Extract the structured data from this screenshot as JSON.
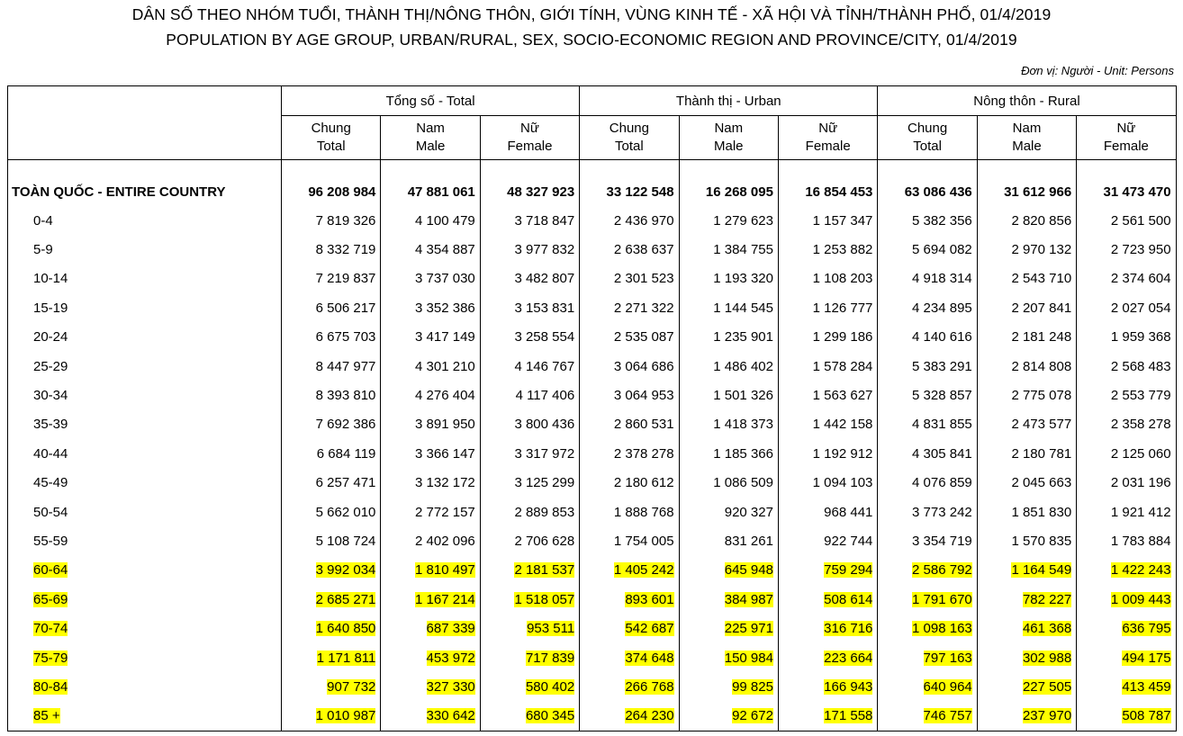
{
  "title_vi": "DÂN SỐ THEO NHÓM TUỔI, THÀNH THỊ/NÔNG THÔN, GIỚI TÍNH, VÙNG KINH TẾ - XÃ HỘI VÀ TỈNH/THÀNH PHỐ, 01/4/2019",
  "title_en": "POPULATION BY AGE GROUP, URBAN/RURAL, SEX, SOCIO-ECONOMIC REGION AND PROVINCE/CITY, 01/4/2019",
  "unit": "Đơn vị: Người - Unit: Persons",
  "highlight_color": "#ffff00",
  "groups": [
    {
      "label": "Tổng số - Total"
    },
    {
      "label": "Thành thị - Urban"
    },
    {
      "label": "Nông thôn - Rural"
    }
  ],
  "subheaders": [
    {
      "vi": "Chung",
      "en": "Total"
    },
    {
      "vi": "Nam",
      "en": "Male"
    },
    {
      "vi": "Nữ",
      "en": "Female"
    },
    {
      "vi": "Chung",
      "en": "Total"
    },
    {
      "vi": "Nam",
      "en": "Male"
    },
    {
      "vi": "Nữ",
      "en": "Female"
    },
    {
      "vi": "Chung",
      "en": "Total"
    },
    {
      "vi": "Nam",
      "en": "Male"
    },
    {
      "vi": "Nữ",
      "en": "Female"
    }
  ],
  "total_row": {
    "label": "TOÀN QUỐC - ENTIRE COUNTRY",
    "values": [
      "96 208 984",
      "47 881 061",
      "48 327 923",
      "33 122 548",
      "16 268 095",
      "16 854 453",
      "63 086 436",
      "31 612 966",
      "31 473 470"
    ]
  },
  "rows": [
    {
      "label": "0-4",
      "highlighted": false,
      "values": [
        "7 819 326",
        "4 100 479",
        "3 718 847",
        "2 436 970",
        "1 279 623",
        "1 157 347",
        "5 382 356",
        "2 820 856",
        "2 561 500"
      ]
    },
    {
      "label": "5-9",
      "highlighted": false,
      "values": [
        "8 332 719",
        "4 354 887",
        "3 977 832",
        "2 638 637",
        "1 384 755",
        "1 253 882",
        "5 694 082",
        "2 970 132",
        "2 723 950"
      ]
    },
    {
      "label": "10-14",
      "highlighted": false,
      "values": [
        "7 219 837",
        "3 737 030",
        "3 482 807",
        "2 301 523",
        "1 193 320",
        "1 108 203",
        "4 918 314",
        "2 543 710",
        "2 374 604"
      ]
    },
    {
      "label": "15-19",
      "highlighted": false,
      "values": [
        "6 506 217",
        "3 352 386",
        "3 153 831",
        "2 271 322",
        "1 144 545",
        "1 126 777",
        "4 234 895",
        "2 207 841",
        "2 027 054"
      ]
    },
    {
      "label": "20-24",
      "highlighted": false,
      "values": [
        "6 675 703",
        "3 417 149",
        "3 258 554",
        "2 535 087",
        "1 235 901",
        "1 299 186",
        "4 140 616",
        "2 181 248",
        "1 959 368"
      ]
    },
    {
      "label": "25-29",
      "highlighted": false,
      "values": [
        "8 447 977",
        "4 301 210",
        "4 146 767",
        "3 064 686",
        "1 486 402",
        "1 578 284",
        "5 383 291",
        "2 814 808",
        "2 568 483"
      ]
    },
    {
      "label": "30-34",
      "highlighted": false,
      "values": [
        "8 393 810",
        "4 276 404",
        "4 117 406",
        "3 064 953",
        "1 501 326",
        "1 563 627",
        "5 328 857",
        "2 775 078",
        "2 553 779"
      ]
    },
    {
      "label": "35-39",
      "highlighted": false,
      "values": [
        "7 692 386",
        "3 891 950",
        "3 800 436",
        "2 860 531",
        "1 418 373",
        "1 442 158",
        "4 831 855",
        "2 473 577",
        "2 358 278"
      ]
    },
    {
      "label": "40-44",
      "highlighted": false,
      "values": [
        "6 684 119",
        "3 366 147",
        "3 317 972",
        "2 378 278",
        "1 185 366",
        "1 192 912",
        "4 305 841",
        "2 180 781",
        "2 125 060"
      ]
    },
    {
      "label": "45-49",
      "highlighted": false,
      "values": [
        "6 257 471",
        "3 132 172",
        "3 125 299",
        "2 180 612",
        "1 086 509",
        "1 094 103",
        "4 076 859",
        "2 045 663",
        "2 031 196"
      ]
    },
    {
      "label": "50-54",
      "highlighted": false,
      "values": [
        "5 662 010",
        "2 772 157",
        "2 889 853",
        "1 888 768",
        "920 327",
        "968 441",
        "3 773 242",
        "1 851 830",
        "1 921 412"
      ]
    },
    {
      "label": "55-59",
      "highlighted": false,
      "values": [
        "5 108 724",
        "2 402 096",
        "2 706 628",
        "1 754 005",
        "831 261",
        "922 744",
        "3 354 719",
        "1 570 835",
        "1 783 884"
      ]
    },
    {
      "label": "60-64",
      "highlighted": true,
      "values": [
        "3 992 034",
        "1 810 497",
        "2 181 537",
        "1 405 242",
        "645 948",
        "759 294",
        "2 586 792",
        "1 164 549",
        "1 422 243"
      ]
    },
    {
      "label": "65-69",
      "highlighted": true,
      "values": [
        "2 685 271",
        "1 167 214",
        "1 518 057",
        "893 601",
        "384 987",
        "508 614",
        "1 791 670",
        "782 227",
        "1 009 443"
      ]
    },
    {
      "label": "70-74",
      "highlighted": true,
      "values": [
        "1 640 850",
        "687 339",
        "953 511",
        "542 687",
        "225 971",
        "316 716",
        "1 098 163",
        "461 368",
        "636 795"
      ]
    },
    {
      "label": "75-79",
      "highlighted": true,
      "values": [
        "1 171 811",
        "453 972",
        "717 839",
        "374 648",
        "150 984",
        "223 664",
        "797 163",
        "302 988",
        "494 175"
      ]
    },
    {
      "label": "80-84",
      "highlighted": true,
      "values": [
        "907 732",
        "327 330",
        "580 402",
        "266 768",
        "99 825",
        "166 943",
        "640 964",
        "227 505",
        "413 459"
      ]
    },
    {
      "label": "85 +",
      "highlighted": true,
      "values": [
        "1 010 987",
        "330 642",
        "680 345",
        "264 230",
        "92 672",
        "171 558",
        "746 757",
        "237 970",
        "508 787"
      ]
    }
  ]
}
